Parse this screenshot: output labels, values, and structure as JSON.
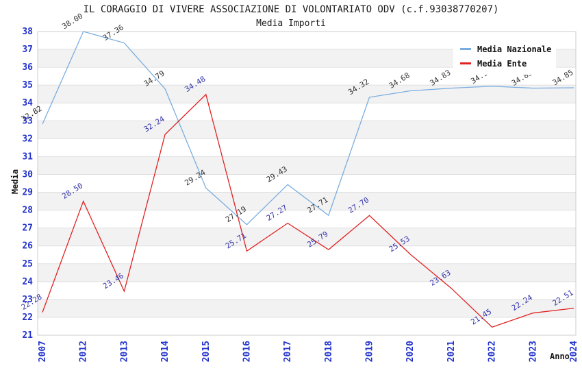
{
  "header": {
    "title": "IL CORAGGIO DI VIVERE ASSOCIAZIONE DI VOLONTARIATO ODV (c.f.93038770207)",
    "subtitle": "Media Importi"
  },
  "axes": {
    "y_title": "Media",
    "x_title": "Anno"
  },
  "legend": {
    "items": [
      {
        "label": "Media Nazionale",
        "color": "#79ade0"
      },
      {
        "label": "Media Ente",
        "color": "#e02222"
      }
    ]
  },
  "chart_data": {
    "type": "line",
    "title": "IL CORAGGIO DI VIVERE ASSOCIAZIONE DI VOLONTARIATO ODV (c.f.93038770207)",
    "subtitle": "Media Importi",
    "xlabel": "Anno",
    "ylabel": "Media",
    "x": [
      "2007",
      "2012",
      "2013",
      "2014",
      "2015",
      "2016",
      "2017",
      "2018",
      "2019",
      "2020",
      "2021",
      "2022",
      "2023",
      "2024"
    ],
    "series": [
      {
        "name": "Media Nazionale",
        "color": "#79ade0",
        "label_color": "#333333",
        "values": [
          32.82,
          38.0,
          37.36,
          34.79,
          29.24,
          27.19,
          29.43,
          27.71,
          34.32,
          34.68,
          34.83,
          34.94,
          34.83,
          34.85
        ]
      },
      {
        "name": "Media Ente",
        "color": "#e02222",
        "label_color": "#3333aa",
        "values": [
          22.28,
          28.5,
          23.46,
          32.24,
          34.48,
          25.71,
          27.27,
          25.79,
          27.7,
          25.53,
          23.63,
          21.45,
          22.24,
          22.51
        ]
      }
    ],
    "ylim": [
      21,
      38
    ],
    "ytick_step": 1,
    "grid": true,
    "stripes": true,
    "legend_position": "top-right",
    "colors": {
      "tick_label": "#2233cc",
      "stripe": "#f2f2f2",
      "grid": "#e0e0e0",
      "border": "#cccccc"
    }
  }
}
